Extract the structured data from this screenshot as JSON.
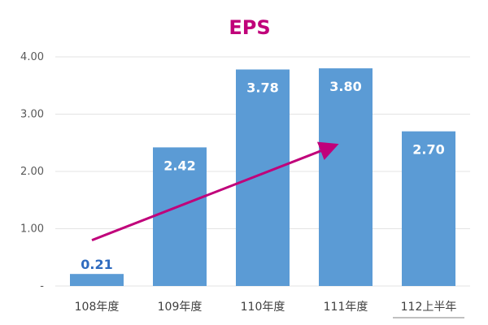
{
  "chart_data": {
    "type": "bar",
    "title": "EPS",
    "categories": [
      "108年度",
      "109年度",
      "110年度",
      "111年度",
      "112上半年"
    ],
    "values": [
      0.21,
      2.42,
      3.78,
      3.8,
      2.7
    ],
    "data_labels": [
      "0.21",
      "2.42",
      "3.78",
      "3.80",
      "2.70"
    ],
    "y_ticks": [
      {
        "value": 0,
        "label": "-"
      },
      {
        "value": 1,
        "label": "1.00"
      },
      {
        "value": 2,
        "label": "2.00"
      },
      {
        "value": 3,
        "label": "3.00"
      },
      {
        "value": 4,
        "label": "4.00"
      }
    ],
    "ylim": [
      0,
      4
    ],
    "grid": true,
    "underlined_category": "112上半年",
    "trend_arrow": {
      "from": [
        0,
        0.8
      ],
      "to": [
        3,
        2.45
      ]
    },
    "colors": {
      "bar": "#5b9bd5",
      "title": "#c0007a",
      "arrow": "#c0007a",
      "label_inside": "#ffffff",
      "label_outside": "#2f6bbf",
      "grid": "#e3e3e3"
    }
  }
}
